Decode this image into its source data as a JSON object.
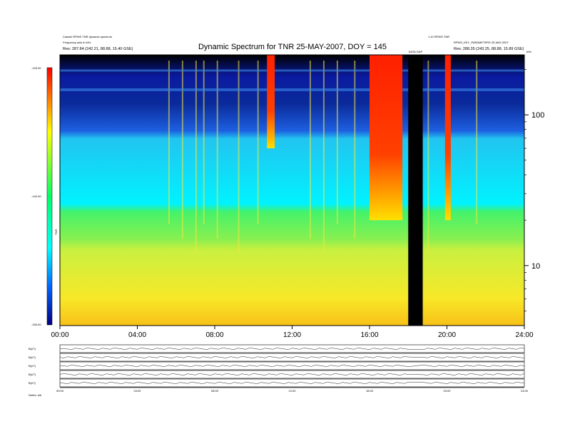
{
  "chart_data": {
    "type": "heatmap",
    "title": "Dynamic Spectrum for TNR 25-MAY-2007, DOY = 145",
    "header_left": [
      "Cassini RPWS TNR dynamic spectrum",
      "Frequency axis in kHz",
      "Res: 287.84 (242.21, 88.88, 15.40 GSE)"
    ],
    "header_right": [
      "1.10 RPWS TNR",
      "RPWS_KEY_PARAMETERS 25-MAY-2007",
      "Res: 288.35 (243.25, 88.88, 15.89 GSE)"
    ],
    "corner_label": "kHz",
    "gap_label": "DATA GAP",
    "colorbar": {
      "label": "TNR",
      "ticks": [
        "-125.00",
        "-140.00",
        "-155.00"
      ],
      "range": [
        -155,
        -125
      ]
    },
    "x_ticks": [
      "00:00",
      "04:00",
      "08:00",
      "12:00",
      "16:00",
      "20:00",
      "24:00"
    ],
    "xlim_hours": [
      0,
      24
    ],
    "y_ticks": [
      "100",
      "10"
    ],
    "ylim_khz": [
      4,
      250
    ],
    "y_scale": "log",
    "data_gap_hours": [
      18.0,
      18.75
    ],
    "bursts": [
      {
        "start_hour": 16.0,
        "end_hour": 17.7,
        "intensity": "strong",
        "lowest_khz": 20
      },
      {
        "start_hour": 10.7,
        "end_hour": 11.1,
        "intensity": "strong",
        "lowest_khz": 60
      },
      {
        "start_hour": 19.9,
        "end_hour": 20.2,
        "intensity": "strong",
        "lowest_khz": 20
      }
    ],
    "sub_panels": [
      {
        "label": "B(nT)"
      },
      {
        "label": "B(nT)"
      },
      {
        "label": "B(nT)"
      },
      {
        "label": "B(nT)"
      },
      {
        "label": "B(nT)"
      }
    ],
    "footer_label": "Notes: a/b"
  }
}
